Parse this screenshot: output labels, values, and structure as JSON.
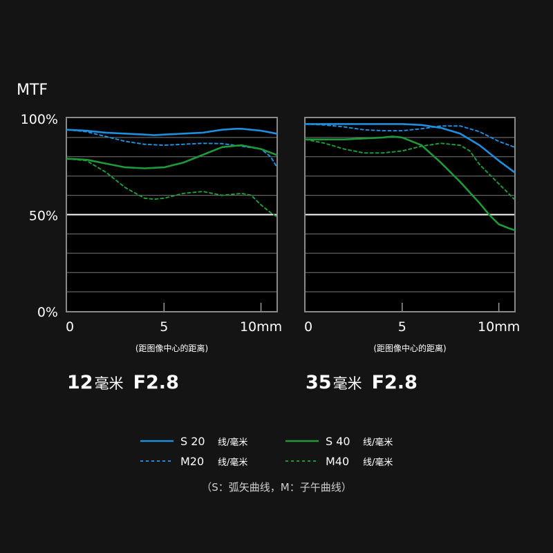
{
  "colors": {
    "background": "#141414",
    "plot_background": "#000000",
    "grid": "#7a7a7a",
    "sagittal_20": "#1e8fdc",
    "meridional_20": "#1e8fdc",
    "sagittal_40": "#1f9a3a",
    "meridional_40": "#1f9a3a"
  },
  "y_axis_title": "MTF",
  "legend": {
    "items": [
      {
        "label": "S 20",
        "unit": "线/毫米",
        "style": "solid",
        "color_key": "sagittal_20"
      },
      {
        "label": "S 40",
        "unit": "线/毫米",
        "style": "solid",
        "color_key": "sagittal_40"
      },
      {
        "label": "M20",
        "unit": "线/毫米",
        "style": "dashed",
        "color_key": "meridional_20"
      },
      {
        "label": "M40",
        "unit": "线/毫米",
        "style": "dashed",
        "color_key": "meridional_40"
      }
    ],
    "note": "（S：弧矢曲线，M：子午曲线）"
  },
  "chart_data": [
    {
      "type": "line",
      "title": "12毫米 F2.8",
      "title_parts": {
        "focal": "12",
        "unit": "毫米",
        "aperture": "F2.8"
      },
      "xlabel": "(距图像中心的距离)",
      "x_ticks": [
        "0",
        "5",
        "10mm"
      ],
      "x_tick_values": [
        0,
        5,
        10
      ],
      "y_ticks": [
        "0%",
        "50%",
        "100%"
      ],
      "y_tick_values": [
        0,
        50,
        100
      ],
      "xlim": [
        0,
        10.8
      ],
      "ylim": [
        0,
        100
      ],
      "grid": true,
      "series": [
        {
          "name": "S 20",
          "color_key": "sagittal_20",
          "dashed": false,
          "x": [
            0,
            1,
            2,
            3,
            4,
            4.5,
            5,
            6,
            7,
            8,
            8.7,
            9,
            10,
            10.8
          ],
          "y": [
            94,
            93.5,
            92.5,
            92,
            91.5,
            91.2,
            91.5,
            92,
            92.5,
            94,
            94.5,
            94.5,
            93.5,
            92
          ]
        },
        {
          "name": "M20",
          "color_key": "meridional_20",
          "dashed": false,
          "x": [
            0,
            1,
            2,
            3,
            4,
            5,
            6,
            7,
            8,
            9,
            10,
            10.5,
            10.8
          ],
          "y": [
            94,
            93,
            90.5,
            88,
            86.5,
            86,
            86.5,
            87,
            86.8,
            85.5,
            84,
            80,
            75
          ]
        },
        {
          "name": "S 40",
          "color_key": "sagittal_40",
          "dashed": false,
          "x": [
            0,
            1,
            2,
            3,
            4,
            5,
            6,
            7,
            8,
            9,
            10,
            10.8
          ],
          "y": [
            79,
            78.5,
            76.5,
            74.5,
            74,
            74.5,
            77,
            81,
            85,
            86,
            84,
            81
          ]
        },
        {
          "name": "M40",
          "color_key": "meridional_40",
          "dashed": false,
          "x": [
            0,
            1,
            2,
            3,
            4,
            4.5,
            5,
            6,
            7,
            8,
            9,
            9.5,
            10,
            10.5,
            10.8
          ],
          "y": [
            79,
            78,
            72,
            64,
            58.5,
            58,
            58.5,
            61,
            62,
            60,
            61,
            60,
            55,
            51,
            49
          ]
        }
      ]
    },
    {
      "type": "line",
      "title": "35毫米 F2.8",
      "title_parts": {
        "focal": "35",
        "unit": "毫米",
        "aperture": "F2.8"
      },
      "xlabel": "(距图像中心的距离)",
      "x_ticks": [
        "0",
        "5",
        "10mm"
      ],
      "x_tick_values": [
        0,
        5,
        10
      ],
      "y_ticks": [
        "0%",
        "50%",
        "100%"
      ],
      "y_tick_values": [
        0,
        50,
        100
      ],
      "xlim": [
        0,
        10.8
      ],
      "ylim": [
        0,
        100
      ],
      "grid": true,
      "series": [
        {
          "name": "S 20",
          "color_key": "sagittal_20",
          "dashed": false,
          "x": [
            0,
            2,
            4,
            5,
            6,
            7,
            8,
            9,
            10,
            10.8
          ],
          "y": [
            97,
            97,
            97,
            97,
            96.5,
            95,
            92,
            86,
            78,
            72
          ]
        },
        {
          "name": "M20",
          "color_key": "meridional_20",
          "dashed": false,
          "x": [
            0,
            1,
            2,
            3,
            4,
            5,
            6,
            7,
            8,
            9,
            10,
            10.8
          ],
          "y": [
            97,
            96.5,
            95.5,
            94,
            93.5,
            93.5,
            94.5,
            96,
            96,
            93,
            88,
            85
          ]
        },
        {
          "name": "S 40",
          "color_key": "sagittal_40",
          "dashed": false,
          "x": [
            0,
            1,
            2,
            3,
            4,
            4.5,
            5,
            6,
            7,
            8,
            9,
            9.5,
            10,
            10.5,
            10.8
          ],
          "y": [
            89,
            89,
            89,
            89.5,
            90,
            90.5,
            90,
            86,
            77,
            67,
            56,
            50,
            45,
            43,
            42
          ]
        },
        {
          "name": "M40",
          "color_key": "meridional_40",
          "dashed": false,
          "x": [
            0,
            1,
            2,
            3,
            4,
            5,
            6,
            7,
            8,
            8.5,
            9,
            10,
            10.8
          ],
          "y": [
            89,
            87,
            84,
            82,
            82,
            83,
            85.5,
            87,
            86,
            83,
            76,
            66,
            58
          ]
        }
      ]
    }
  ]
}
